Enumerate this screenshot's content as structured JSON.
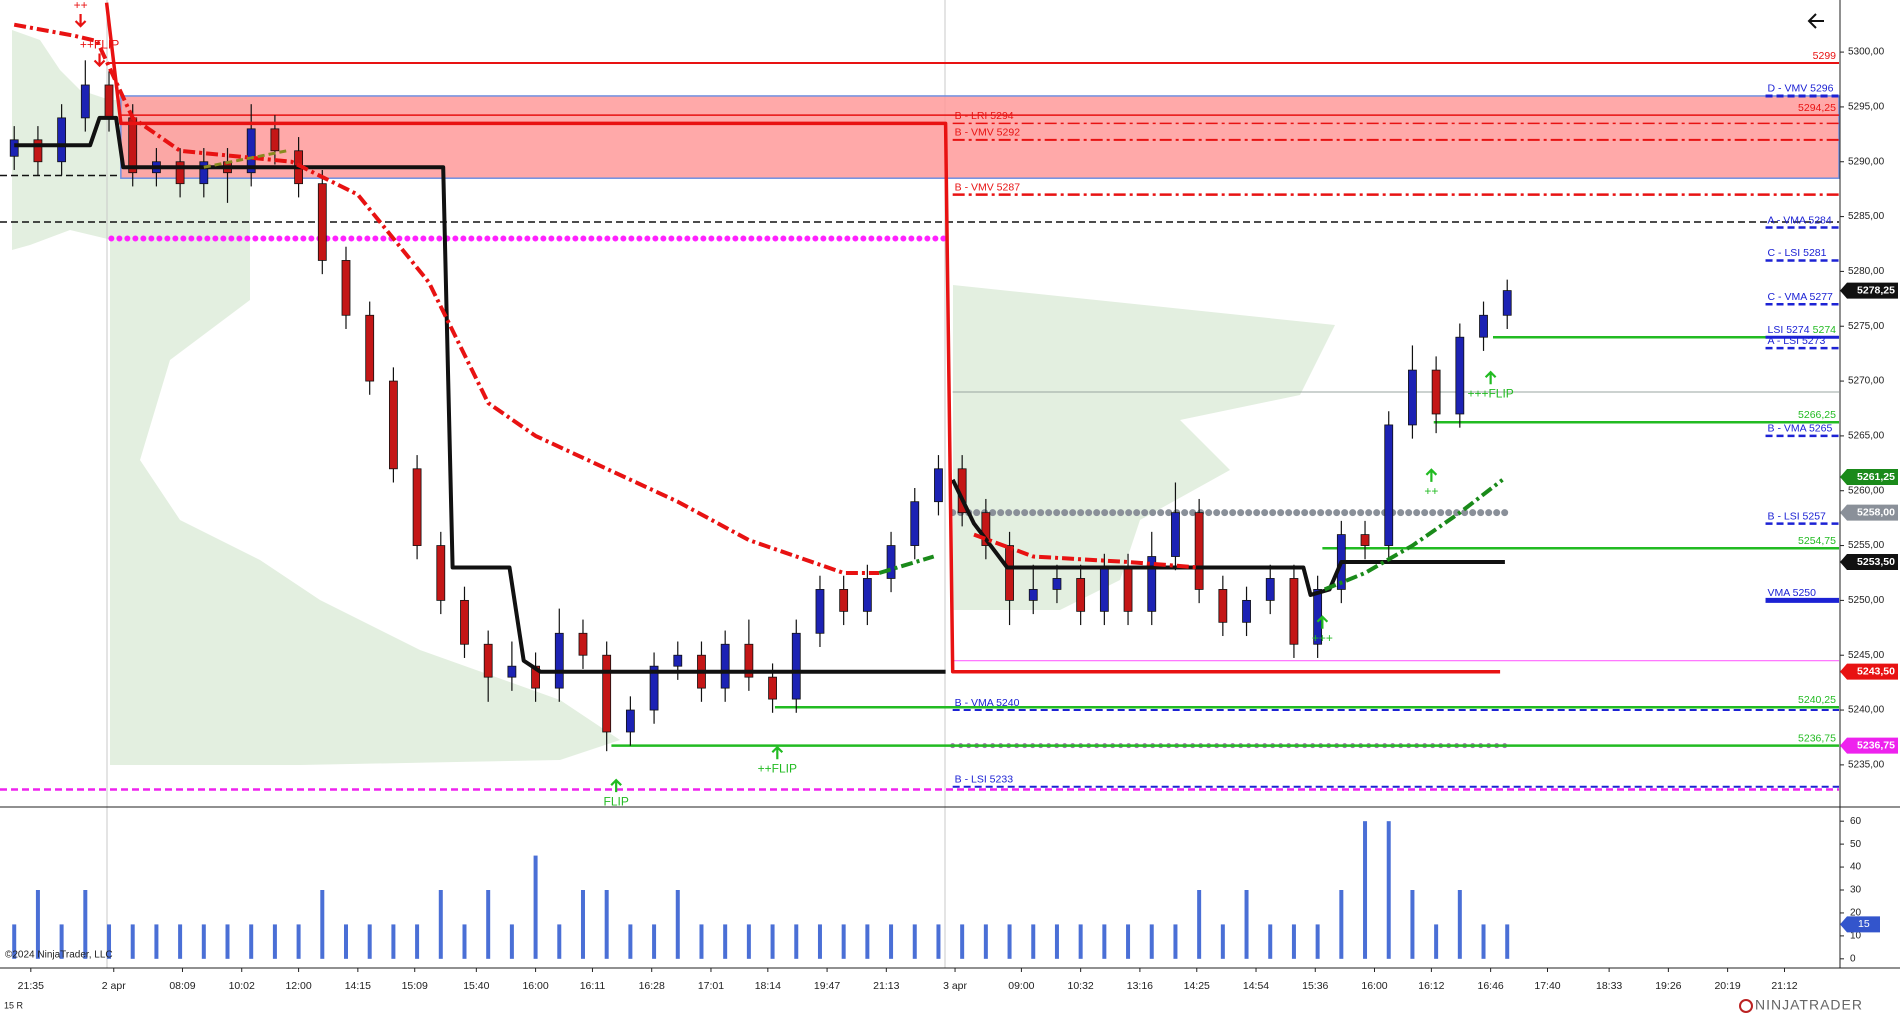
{
  "chart_data": {
    "type": "candlestick",
    "x": [
      0,
      1,
      2,
      3,
      4,
      5,
      6,
      7,
      8,
      9,
      10,
      11,
      12,
      13,
      14,
      15,
      16,
      17,
      18,
      19,
      20,
      21,
      22,
      23,
      24,
      25,
      26,
      27,
      28,
      29,
      30,
      31,
      32,
      33,
      34,
      35,
      36,
      37,
      38,
      39,
      40,
      41,
      42,
      43,
      44,
      45,
      46,
      47,
      48,
      49,
      50,
      51,
      52,
      53,
      54,
      55,
      56,
      57,
      58,
      59,
      60,
      61,
      62,
      63
    ],
    "open": [
      5290.5,
      5292,
      5290,
      5294,
      5297,
      5294,
      5289,
      5290,
      5288,
      5290,
      5289,
      5293,
      5291,
      5288,
      5281,
      5276,
      5270,
      5262,
      5255,
      5250,
      5246,
      5243,
      5244,
      5242,
      5247,
      5245,
      5238,
      5240,
      5244,
      5245,
      5242,
      5246,
      5243,
      5241,
      5247,
      5251,
      5249,
      5252,
      5255,
      5259,
      5262,
      5258,
      5255,
      5250,
      5251,
      5252,
      5249,
      5253,
      5249,
      5254,
      5258,
      5251,
      5248,
      5250,
      5252,
      5246,
      5251,
      5256,
      5255,
      5266,
      5271,
      5267,
      5274,
      5276
    ],
    "high": [
      5293.25,
      5293.25,
      5295.25,
      5299.25,
      5298.25,
      5295.25,
      5291.25,
      5291.25,
      5291.25,
      5291.25,
      5295.25,
      5294.25,
      5292.25,
      5289.25,
      5282.25,
      5277.25,
      5271.25,
      5263.25,
      5256.25,
      5251.25,
      5247.25,
      5246.25,
      5245.25,
      5249.25,
      5248.25,
      5246.25,
      5241.25,
      5245.25,
      5246.25,
      5246.25,
      5247.25,
      5248.25,
      5244.25,
      5248.25,
      5252.25,
      5252.25,
      5253.25,
      5256.25,
      5260.25,
      5263.25,
      5263.25,
      5259.25,
      5256.25,
      5253.25,
      5253.25,
      5253.25,
      5254.25,
      5254.25,
      5256.25,
      5260.75,
      5259.25,
      5252.25,
      5251.25,
      5253.25,
      5253.25,
      5252.25,
      5257.25,
      5257.25,
      5267.25,
      5273.25,
      5272.25,
      5275.25,
      5277.25,
      5279.25
    ],
    "low": [
      5289.25,
      5288.75,
      5288.75,
      5292.75,
      5292.75,
      5287.75,
      5287.75,
      5286.75,
      5286.75,
      5286.25,
      5287.75,
      5289.75,
      5286.75,
      5279.75,
      5274.75,
      5268.75,
      5260.75,
      5253.75,
      5248.75,
      5244.75,
      5240.75,
      5241.75,
      5240.75,
      5240.75,
      5243.75,
      5236.25,
      5236.75,
      5238.75,
      5242.75,
      5240.75,
      5240.75,
      5241.75,
      5239.75,
      5239.75,
      5245.75,
      5247.75,
      5247.75,
      5250.75,
      5253.75,
      5257.75,
      5256.75,
      5253.75,
      5247.75,
      5248.75,
      5249.75,
      5247.75,
      5247.75,
      5247.75,
      5247.75,
      5252.75,
      5249.75,
      5246.75,
      5246.75,
      5248.75,
      5244.75,
      5244.75,
      5249.75,
      5253.75,
      5253.75,
      5264.75,
      5265.25,
      5265.75,
      5272.75,
      5274.75
    ],
    "close": [
      5292,
      5290,
      5294,
      5297,
      5294,
      5289,
      5290,
      5288,
      5290,
      5289,
      5293,
      5291,
      5288,
      5281,
      5276,
      5270,
      5262,
      5255,
      5250,
      5246,
      5243,
      5244,
      5242,
      5247,
      5245,
      5238,
      5240,
      5244,
      5245,
      5242,
      5246,
      5243,
      5241,
      5247,
      5251,
      5249,
      5252,
      5255,
      5259,
      5262,
      5258,
      5255,
      5250,
      5251,
      5252,
      5249,
      5253,
      5249,
      5254,
      5258,
      5251,
      5248,
      5250,
      5252,
      5246,
      5251,
      5256,
      5255,
      5266,
      5271,
      5267,
      5274,
      5276,
      5278.25
    ],
    "up_color": "#1c22b4",
    "down_color": "#c41616",
    "xlim": [
      -0.6,
      77
    ],
    "xticks": [
      {
        "value": 0.7,
        "label": "21:35"
      },
      {
        "value": 4.2,
        "label": "2 apr"
      },
      {
        "value": 7.1,
        "label": "08:09"
      },
      {
        "value": 9.6,
        "label": "10:02"
      },
      {
        "value": 12.0,
        "label": "12:00"
      },
      {
        "value": 14.5,
        "label": "14:15"
      },
      {
        "value": 16.9,
        "label": "15:09"
      },
      {
        "value": 19.5,
        "label": "15:40"
      },
      {
        "value": 22.0,
        "label": "16:00"
      },
      {
        "value": 24.4,
        "label": "16:11"
      },
      {
        "value": 26.9,
        "label": "16:28"
      },
      {
        "value": 29.4,
        "label": "17:01"
      },
      {
        "value": 31.8,
        "label": "18:14"
      },
      {
        "value": 34.3,
        "label": "19:47"
      },
      {
        "value": 36.8,
        "label": "21:13"
      },
      {
        "value": 39.7,
        "label": "3 apr"
      },
      {
        "value": 42.5,
        "label": "09:00"
      },
      {
        "value": 45.0,
        "label": "10:32"
      },
      {
        "value": 47.5,
        "label": "13:16"
      },
      {
        "value": 49.9,
        "label": "14:25"
      },
      {
        "value": 52.4,
        "label": "14:54"
      },
      {
        "value": 54.9,
        "label": "15:36"
      },
      {
        "value": 57.4,
        "label": "16:00"
      },
      {
        "value": 59.8,
        "label": "16:12"
      },
      {
        "value": 62.3,
        "label": "16:46"
      },
      {
        "value": 64.7,
        "label": "17:40"
      },
      {
        "value": 67.3,
        "label": "18:33"
      },
      {
        "value": 69.8,
        "label": "19:26"
      },
      {
        "value": 72.3,
        "label": "20:19"
      },
      {
        "value": 74.7,
        "label": "21:12"
      }
    ],
    "ylim": [
      5231.25,
      5304.75
    ],
    "yticks": [
      {
        "value": 5235,
        "label": "5235,00"
      },
      {
        "value": 5240,
        "label": "5240,00"
      },
      {
        "value": 5245,
        "label": "5245,00"
      },
      {
        "value": 5250,
        "label": "5250,00"
      },
      {
        "value": 5255,
        "label": "5255,00"
      },
      {
        "value": 5260,
        "label": "5260,00"
      },
      {
        "value": 5265,
        "label": "5265,00"
      },
      {
        "value": 5270,
        "label": "5270,00"
      },
      {
        "value": 5275,
        "label": "5275,00"
      },
      {
        "value": 5280,
        "label": "5280,00"
      },
      {
        "value": 5285,
        "label": "5285,00"
      },
      {
        "value": 5290,
        "label": "5290,00"
      },
      {
        "value": 5295,
        "label": "5295,00"
      },
      {
        "value": 5300,
        "label": "5300,00"
      }
    ],
    "zone": {
      "from": 4.5,
      "low": 5288.5,
      "high": 5296,
      "color": "#ff9a9a",
      "edge_color": "#6f8fe0"
    },
    "lines": [
      {
        "x": [
          0,
          3.2,
          3.6,
          4.3,
          4.6,
          18.1,
          18.5,
          20.9,
          21.5,
          22.2,
          39.3,
          null,
          39.6,
          40.5,
          41.9,
          54.4,
          54.7,
          55.5,
          56,
          62.9
        ],
        "values": [
          5291.5,
          5291.5,
          5294,
          5294,
          5289.5,
          5289.5,
          5253,
          5253,
          5244.5,
          5243.5,
          5243.5,
          null,
          5261,
          5257,
          5253,
          5253,
          5250.5,
          5251,
          5253.5,
          5253.5
        ],
        "color": "#111111",
        "width": 4,
        "style": "solid"
      },
      {
        "x": [
          3.9,
          4.5,
          39.3,
          39.6,
          62.7
        ],
        "values": [
          5304.5,
          5293.5,
          5293.5,
          5243.5,
          5243.5
        ],
        "color": "#e81212",
        "width": 3.5,
        "style": "solid"
      },
      {
        "x": [
          0,
          2.5,
          3.5,
          5,
          7,
          11.7,
          14.5,
          16,
          17.5,
          20,
          22,
          25,
          28,
          31,
          33,
          35,
          36.5,
          null,
          40.5,
          43,
          47,
          50
        ],
        "values": [
          5302.5,
          5301.5,
          5301,
          5294,
          5291,
          5290,
          5287,
          5283,
          5279,
          5268,
          5265,
          5262,
          5259,
          5255.5,
          5254,
          5252.5,
          5252.5,
          null,
          5256,
          5254,
          5253.5,
          5253
        ],
        "color": "#e81212",
        "width": 4,
        "style": "dashdot"
      },
      {
        "x": [
          36.5,
          38.8,
          null,
          55.3,
          57,
          59,
          61,
          62.8
        ],
        "values": [
          5252.5,
          5254,
          null,
          5251,
          5252.5,
          5255,
          5258,
          5261
        ],
        "color": "#1a8a1a",
        "width": 4,
        "style": "dashdot"
      },
      {
        "x": [
          8,
          11.5
        ],
        "values": [
          5289.5,
          5291
        ],
        "color": "#8a8a20",
        "width": 3,
        "style": "dashed"
      }
    ],
    "guides": [
      {
        "value": 5288.75,
        "from": -0.6,
        "to": 4.5,
        "color": "#111111",
        "style": "dashed",
        "width": 1.5
      },
      {
        "value": 5284.5,
        "from": -0.6,
        "to": 77,
        "color": "#111111",
        "style": "dashed",
        "width": 1.5
      },
      {
        "value": 5283,
        "from": 4.1,
        "to": 39.3,
        "color": "#ff22ff",
        "style": "dots",
        "width": 6
      },
      {
        "value": 5258,
        "from": 39.6,
        "to": 62.9,
        "color": "#8a9099",
        "style": "dots",
        "width": 7
      },
      {
        "value": 5236.75,
        "from": 39.6,
        "to": 62.9,
        "color": "#a070b0",
        "style": "dots",
        "width": 5
      },
      {
        "value": 5232.75,
        "from": -0.6,
        "to": 77,
        "color": "#ee22ee",
        "style": "dashed",
        "width": 2.5
      },
      {
        "value": 5244.5,
        "from": 39.6,
        "to": 77,
        "color": "#ff66ff",
        "style": "solid",
        "width": 1.2
      },
      {
        "value": 5269,
        "from": 39.6,
        "to": 77,
        "color": "#9aa6a0",
        "style": "solid",
        "width": 1
      }
    ],
    "levels": [
      {
        "value": 5299,
        "label": "5299",
        "color": "#e81212",
        "style": "solid",
        "width": 2,
        "from": 3.9,
        "align": "right"
      },
      {
        "value": 5296,
        "label": "D - VMV 5296",
        "color": "#1c22d4",
        "style": "dashed",
        "width": 3,
        "from": 73.9,
        "align": "left"
      },
      {
        "value": 5294.25,
        "label": "5294,25",
        "color": "#e81212",
        "style": "solid",
        "width": 1.5,
        "from": 4.5,
        "align": "right"
      },
      {
        "value": 5293.5,
        "label": "B - LRI 5294",
        "color": "#e81212",
        "style": "dashdot",
        "width": 1.5,
        "from": 39.6,
        "align": "left"
      },
      {
        "value": 5292,
        "label": "B - VMV 5292",
        "color": "#e81212",
        "style": "dashdot",
        "width": 2,
        "from": 39.6,
        "align": "left"
      },
      {
        "value": 5287,
        "label": "B - VMV 5287",
        "color": "#e81212",
        "style": "dashdot",
        "width": 2.5,
        "from": 39.6,
        "align": "left"
      },
      {
        "value": 5284,
        "label": "A - VMA 5284",
        "color": "#1c22d4",
        "style": "dashed",
        "width": 2.5,
        "from": 73.9,
        "align": "left"
      },
      {
        "value": 5281,
        "label": "C - LSI 5281",
        "color": "#1c22d4",
        "style": "dashed",
        "width": 2.5,
        "from": 73.9,
        "align": "left"
      },
      {
        "value": 5277,
        "label": "C - VMA 5277",
        "color": "#1c22d4",
        "style": "dashed",
        "width": 2.5,
        "from": 73.9,
        "align": "left"
      },
      {
        "value": 5274,
        "label": "5274",
        "color": "#22bb22",
        "style": "solid",
        "width": 2.5,
        "from": 62.4,
        "align": "right"
      },
      {
        "value": 5274,
        "label": "LSI 5274",
        "color": "#1c22d4",
        "style": "solid",
        "width": 3,
        "from": 73.9,
        "align": "left"
      },
      {
        "value": 5273,
        "label": "A - LSI 5273",
        "color": "#1c22d4",
        "style": "dashed",
        "width": 2.5,
        "from": 73.9,
        "align": "left"
      },
      {
        "value": 5266.25,
        "label": "5266,25",
        "color": "#22bb22",
        "style": "solid",
        "width": 2.5,
        "from": 59.9,
        "align": "right"
      },
      {
        "value": 5265,
        "label": "B - VMA 5265",
        "color": "#1c22d4",
        "style": "dashed",
        "width": 2.5,
        "from": 73.9,
        "align": "left"
      },
      {
        "value": 5257,
        "label": "B - LSI 5257",
        "color": "#1c22d4",
        "style": "dashed",
        "width": 2.5,
        "from": 73.9,
        "align": "left"
      },
      {
        "value": 5254.75,
        "label": "5254,75",
        "color": "#22bb22",
        "style": "solid",
        "width": 2.5,
        "from": 55.2,
        "align": "right"
      },
      {
        "value": 5250,
        "label": "VMA 5250",
        "color": "#1c22d4",
        "style": "solid",
        "width": 5,
        "from": 73.9,
        "align": "left"
      },
      {
        "value": 5240.25,
        "label": "5240,25",
        "color": "#22bb22",
        "style": "solid",
        "width": 2.5,
        "from": 32.1,
        "align": "right"
      },
      {
        "value": 5240,
        "label": "B - VMA 5240",
        "color": "#1c22d4",
        "style": "dashed",
        "width": 2,
        "from": 39.6,
        "align": "left"
      },
      {
        "value": 5236.75,
        "label": "5236,75",
        "color": "#22bb22",
        "style": "solid",
        "width": 2.5,
        "from": 25.2,
        "align": "right"
      },
      {
        "value": 5233,
        "label": "B - LSI 5233",
        "color": "#1c22d4",
        "style": "dashed",
        "width": 2,
        "from": 39.6,
        "align": "left"
      }
    ],
    "badges": [
      {
        "value": 5278.25,
        "label": "5278,25",
        "color": "#111111"
      },
      {
        "value": 5261.25,
        "label": "5261,25",
        "color": "#1a8a1a"
      },
      {
        "value": 5258,
        "label": "5258,00",
        "color": "#8a9099"
      },
      {
        "value": 5253.5,
        "label": "5253,50",
        "color": "#111111"
      },
      {
        "value": 5243.5,
        "label": "5243,50",
        "color": "#e81212"
      },
      {
        "value": 5236.75,
        "label": "5236,75",
        "color": "#ee22ee"
      }
    ],
    "annotations": [
      {
        "text": "++",
        "x": 2.8,
        "price": 5304.2,
        "color": "#e81212",
        "arrow": "down"
      },
      {
        "text": "++FLIP",
        "x": 3.6,
        "price": 5300.6,
        "color": "#e81212",
        "arrow": "down"
      },
      {
        "text": "FLIP",
        "x": 25.4,
        "price": 5231.6,
        "color": "#22bb22",
        "arrow": "up"
      },
      {
        "text": "++FLIP",
        "x": 32.2,
        "price": 5234.6,
        "color": "#22bb22",
        "arrow": "up"
      },
      {
        "text": "+++",
        "x": 55.2,
        "price": 5246.5,
        "color": "#22bb22",
        "arrow": "up"
      },
      {
        "text": "++",
        "x": 59.8,
        "price": 5259.9,
        "color": "#22bb22",
        "arrow": "up"
      },
      {
        "text": "+++FLIP",
        "x": 62.3,
        "price": 5268.8,
        "color": "#22bb22",
        "arrow": "up"
      }
    ],
    "volume": {
      "values": [
        15,
        30,
        15,
        30,
        15,
        15,
        15,
        15,
        15,
        15,
        15,
        15,
        15,
        30,
        15,
        15,
        15,
        15,
        30,
        15,
        30,
        15,
        45,
        15,
        30,
        30,
        15,
        15,
        30,
        15,
        15,
        15,
        15,
        15,
        15,
        15,
        15,
        15,
        15,
        15,
        15,
        15,
        15,
        15,
        15,
        15,
        15,
        15,
        15,
        15,
        30,
        15,
        30,
        15,
        15,
        15,
        30,
        60,
        60,
        30,
        15,
        30,
        15,
        15
      ],
      "color": "#4a6fd6",
      "ylim": [
        -4,
        64
      ],
      "yticks": [
        0,
        10,
        20,
        30,
        40,
        50,
        60
      ],
      "badge": {
        "value": 15,
        "label": "15",
        "color": "#3355cc"
      }
    }
  },
  "footer": {
    "copyright": "©2024 NinjaTrader, LLC",
    "period": "15 R",
    "brand": "NINJATRADER"
  }
}
